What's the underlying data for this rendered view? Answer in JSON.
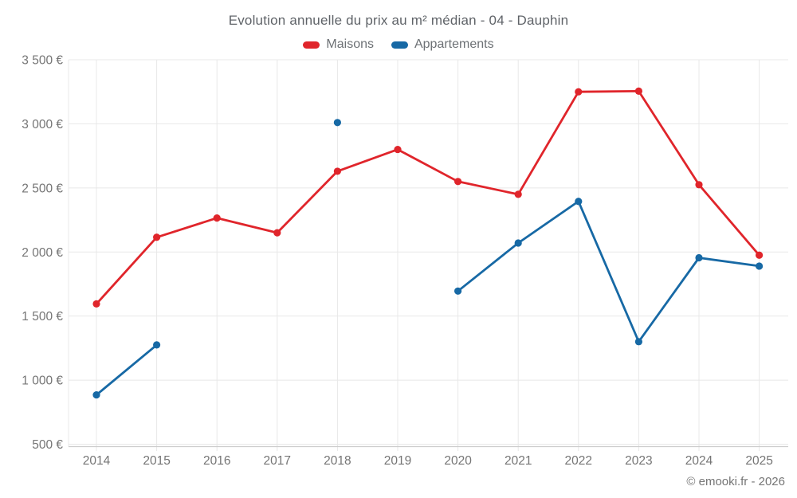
{
  "title": "Evolution annuelle du prix au m² médian - 04 - Dauphin",
  "legend": {
    "items": [
      {
        "label": "Maisons",
        "color": "#e0252b"
      },
      {
        "label": "Appartements",
        "color": "#1769a5"
      }
    ]
  },
  "footer": {
    "copyright": "© emooki.fr - 2026"
  },
  "chart_data": {
    "type": "line",
    "title": "Evolution annuelle du prix au m² médian - 04 - Dauphin",
    "categories": [
      "2014",
      "2015",
      "2016",
      "2017",
      "2018",
      "2019",
      "2020",
      "2021",
      "2022",
      "2023",
      "2024",
      "2025"
    ],
    "series": [
      {
        "name": "Maisons",
        "color": "#e0252b",
        "values": [
          1595,
          2115,
          2265,
          2150,
          2630,
          2800,
          2550,
          2450,
          3250,
          3255,
          2525,
          1975
        ]
      },
      {
        "name": "Appartements",
        "color": "#1769a5",
        "values": [
          885,
          1275,
          null,
          null,
          3010,
          null,
          1695,
          2070,
          2395,
          1300,
          1955,
          1890
        ]
      }
    ],
    "ylim": [
      500,
      3500
    ],
    "ytick_step": 500,
    "ytick_labels": [
      "500 €",
      "1 000 €",
      "1 500 €",
      "2 000 €",
      "2 500 €",
      "3 000 €",
      "3 500 €"
    ],
    "xlabel": "",
    "ylabel": "",
    "grid": true,
    "legend_position": "top",
    "colors": {
      "gridline": "#e8e8e8",
      "axis_line": "#cccccc",
      "tick_label": "#757575"
    }
  }
}
